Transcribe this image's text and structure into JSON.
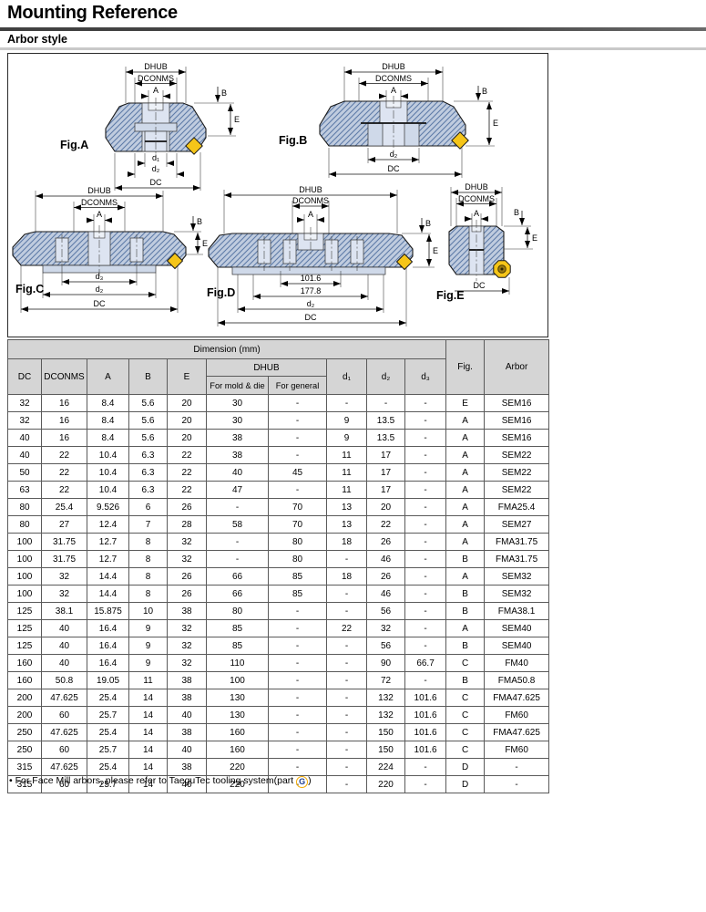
{
  "page": {
    "title": "Mounting Reference",
    "subtitle": "Arbor style",
    "footnote_bullet": "•",
    "footnote_prefix": "For Face Mill arbors, please refer to TaeguTec tooling system(part ",
    "footnote_g": "G",
    "footnote_suffix": ")"
  },
  "colors": {
    "insert_yellow": "#f5c518",
    "body_blue": "#c0ccdf",
    "hatch_blue": "#5e7ba8",
    "header_gray": "#d5d5d5",
    "accent_orange": "#f2a900",
    "accent_blue": "#1d3d91"
  },
  "figures": [
    {
      "label": "Fig.A",
      "dhub": "DHUB",
      "dconms": "DCONMS",
      "a": "A",
      "b": "B",
      "e": "E",
      "d1": "d₁",
      "d2": "d₂",
      "dc": "DC"
    },
    {
      "label": "Fig.B",
      "dhub": "DHUB",
      "dconms": "DCONMS",
      "a": "A",
      "b": "B",
      "e": "E",
      "d2": "d₂",
      "dc": "DC"
    },
    {
      "label": "Fig.C",
      "dhub": "DHUB",
      "dconms": "DCONMS",
      "a": "A",
      "b": "B",
      "e": "E",
      "d3": "d₃",
      "d2": "d₂",
      "dc": "DC"
    },
    {
      "label": "Fig.D",
      "dhub": "DHUB",
      "dconms": "DCONMS",
      "a": "A",
      "b": "B",
      "e": "E",
      "n1": "101.6",
      "n2": "177.8",
      "d2": "d₂",
      "dc": "DC"
    },
    {
      "label": "Fig.E",
      "dhub": "DHUB",
      "dconms": "DCONMS",
      "a": "A",
      "b": "B",
      "e": "E",
      "dc": "DC"
    }
  ],
  "table": {
    "dimension_header": "Dimension (mm)",
    "col_dc": "DC",
    "col_dconms": "DCONMS",
    "col_a": "A",
    "col_b": "B",
    "col_e": "E",
    "col_dhub": "DHUB",
    "col_dhub_mold": "For mold & die",
    "col_dhub_general": "For general",
    "col_d1": "d₁",
    "col_d2": "d₂",
    "col_d3": "d₃",
    "col_fig": "Fig.",
    "col_arbor": "Arbor",
    "rows": [
      [
        "32",
        "16",
        "8.4",
        "5.6",
        "20",
        "30",
        "-",
        "-",
        "-",
        "-",
        "E",
        "SEM16"
      ],
      [
        "32",
        "16",
        "8.4",
        "5.6",
        "20",
        "30",
        "-",
        "9",
        "13.5",
        "-",
        "A",
        "SEM16"
      ],
      [
        "40",
        "16",
        "8.4",
        "5.6",
        "20",
        "38",
        "-",
        "9",
        "13.5",
        "-",
        "A",
        "SEM16"
      ],
      [
        "40",
        "22",
        "10.4",
        "6.3",
        "22",
        "38",
        "-",
        "11",
        "17",
        "-",
        "A",
        "SEM22"
      ],
      [
        "50",
        "22",
        "10.4",
        "6.3",
        "22",
        "40",
        "45",
        "11",
        "17",
        "-",
        "A",
        "SEM22"
      ],
      [
        "63",
        "22",
        "10.4",
        "6.3",
        "22",
        "47",
        "-",
        "11",
        "17",
        "-",
        "A",
        "SEM22"
      ],
      [
        "80",
        "25.4",
        "9.526",
        "6",
        "26",
        "-",
        "70",
        "13",
        "20",
        "-",
        "A",
        "FMA25.4"
      ],
      [
        "80",
        "27",
        "12.4",
        "7",
        "28",
        "58",
        "70",
        "13",
        "22",
        "-",
        "A",
        "SEM27"
      ],
      [
        "100",
        "31.75",
        "12.7",
        "8",
        "32",
        "-",
        "80",
        "18",
        "26",
        "-",
        "A",
        "FMA31.75"
      ],
      [
        "100",
        "31.75",
        "12.7",
        "8",
        "32",
        "-",
        "80",
        "-",
        "46",
        "-",
        "B",
        "FMA31.75"
      ],
      [
        "100",
        "32",
        "14.4",
        "8",
        "26",
        "66",
        "85",
        "18",
        "26",
        "-",
        "A",
        "SEM32"
      ],
      [
        "100",
        "32",
        "14.4",
        "8",
        "26",
        "66",
        "85",
        "-",
        "46",
        "-",
        "B",
        "SEM32"
      ],
      [
        "125",
        "38.1",
        "15.875",
        "10",
        "38",
        "80",
        "-",
        "-",
        "56",
        "-",
        "B",
        "FMA38.1"
      ],
      [
        "125",
        "40",
        "16.4",
        "9",
        "32",
        "85",
        "-",
        "22",
        "32",
        "-",
        "A",
        "SEM40"
      ],
      [
        "125",
        "40",
        "16.4",
        "9",
        "32",
        "85",
        "-",
        "-",
        "56",
        "-",
        "B",
        "SEM40"
      ],
      [
        "160",
        "40",
        "16.4",
        "9",
        "32",
        "110",
        "-",
        "-",
        "90",
        "66.7",
        "C",
        "FM40"
      ],
      [
        "160",
        "50.8",
        "19.05",
        "11",
        "38",
        "100",
        "-",
        "-",
        "72",
        "-",
        "B",
        "FMA50.8"
      ],
      [
        "200",
        "47.625",
        "25.4",
        "14",
        "38",
        "130",
        "-",
        "-",
        "132",
        "101.6",
        "C",
        "FMA47.625"
      ],
      [
        "200",
        "60",
        "25.7",
        "14",
        "40",
        "130",
        "-",
        "-",
        "132",
        "101.6",
        "C",
        "FM60"
      ],
      [
        "250",
        "47.625",
        "25.4",
        "14",
        "38",
        "160",
        "-",
        "-",
        "150",
        "101.6",
        "C",
        "FMA47.625"
      ],
      [
        "250",
        "60",
        "25.7",
        "14",
        "40",
        "160",
        "-",
        "-",
        "150",
        "101.6",
        "C",
        "FM60"
      ],
      [
        "315",
        "47.625",
        "25.4",
        "14",
        "38",
        "220",
        "-",
        "-",
        "224",
        "-",
        "D",
        "-"
      ],
      [
        "315",
        "60",
        "25.7",
        "14",
        "40",
        "220",
        "-",
        "-",
        "220",
        "-",
        "D",
        "-"
      ]
    ]
  }
}
